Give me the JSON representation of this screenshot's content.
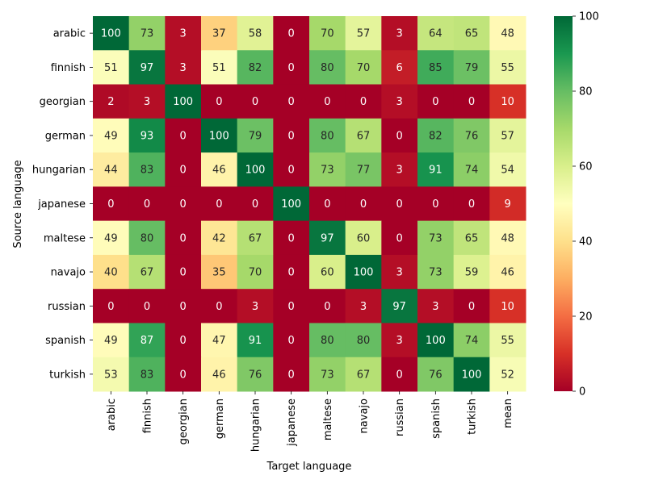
{
  "chart_data": {
    "type": "heatmap",
    "xlabel": "Target language",
    "ylabel": "Source language",
    "x_categories": [
      "arabic",
      "finnish",
      "georgian",
      "german",
      "hungarian",
      "japanese",
      "maltese",
      "navajo",
      "russian",
      "spanish",
      "turkish",
      "mean"
    ],
    "y_categories": [
      "arabic",
      "finnish",
      "georgian",
      "german",
      "hungarian",
      "japanese",
      "maltese",
      "navajo",
      "russian",
      "spanish",
      "turkish"
    ],
    "values": [
      [
        100,
        73,
        3,
        37,
        58,
        0,
        70,
        57,
        3,
        64,
        65,
        48
      ],
      [
        51,
        97,
        3,
        51,
        82,
        0,
        80,
        70,
        6,
        85,
        79,
        55
      ],
      [
        2,
        3,
        100,
        0,
        0,
        0,
        0,
        0,
        3,
        0,
        0,
        10
      ],
      [
        49,
        93,
        0,
        100,
        79,
        0,
        80,
        67,
        0,
        82,
        76,
        57
      ],
      [
        44,
        83,
        0,
        46,
        100,
        0,
        73,
        77,
        3,
        91,
        74,
        54
      ],
      [
        0,
        0,
        0,
        0,
        0,
        100,
        0,
        0,
        0,
        0,
        0,
        9
      ],
      [
        49,
        80,
        0,
        42,
        67,
        0,
        97,
        60,
        0,
        73,
        65,
        48
      ],
      [
        40,
        67,
        0,
        35,
        70,
        0,
        60,
        100,
        3,
        73,
        59,
        46
      ],
      [
        0,
        0,
        0,
        0,
        3,
        0,
        0,
        3,
        97,
        3,
        0,
        10
      ],
      [
        49,
        87,
        0,
        47,
        91,
        0,
        80,
        80,
        3,
        100,
        74,
        55
      ],
      [
        53,
        83,
        0,
        46,
        76,
        0,
        73,
        67,
        0,
        76,
        100,
        52
      ]
    ],
    "vmin": 0,
    "vmax": 100,
    "colorbar_ticks": [
      0,
      20,
      40,
      60,
      80,
      100
    ],
    "colormap": "RdYlGn",
    "grid": false
  }
}
